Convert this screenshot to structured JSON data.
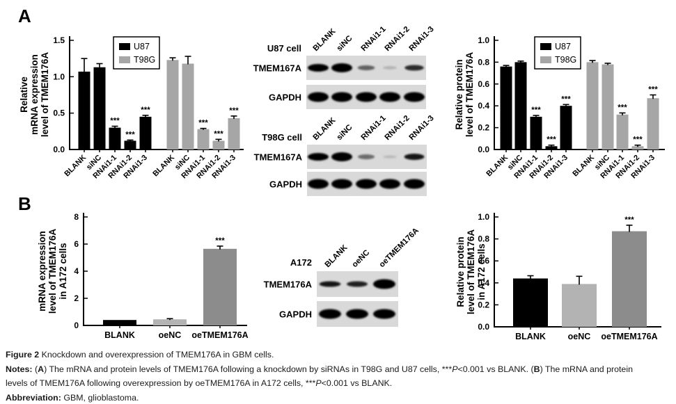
{
  "panels": {
    "a": "A",
    "b": "B"
  },
  "colors": {
    "u87": "#000000",
    "t98g": "#a6a6a6",
    "oenc": "#b3b3b3",
    "oetmem": "#8c8c8c",
    "blot_bg": "#d9d9d9"
  },
  "chart_data": [
    {
      "id": "a_mrna",
      "type": "bar",
      "ylabel_lines": [
        "Relative",
        "mRNA expression",
        "level of TMEM176A"
      ],
      "ylim": [
        0,
        1.5
      ],
      "yticks": [
        "0.0",
        "0.5",
        "1.0",
        "1.5"
      ],
      "categories": [
        "BLANK",
        "siNC",
        "RNAi1-1",
        "RNAi1-2",
        "RNAi1-3"
      ],
      "legend": [
        {
          "label": "U87",
          "color": "#000000"
        },
        {
          "label": "T98G",
          "color": "#a6a6a6"
        }
      ],
      "series": [
        {
          "name": "U87",
          "color": "#000000",
          "values": [
            1.07,
            1.13,
            0.3,
            0.12,
            0.45
          ],
          "errors": [
            0.18,
            0.05,
            0.02,
            0.01,
            0.02
          ],
          "sig": [
            "",
            "",
            "***",
            "***",
            "***"
          ]
        },
        {
          "name": "T98G",
          "color": "#a6a6a6",
          "values": [
            1.23,
            1.18,
            0.28,
            0.12,
            0.43
          ],
          "errors": [
            0.03,
            0.1,
            0.01,
            0.02,
            0.03
          ],
          "sig": [
            "",
            "",
            "***",
            "***",
            "***"
          ]
        }
      ]
    },
    {
      "id": "a_protein",
      "type": "bar",
      "ylabel_lines": [
        "Relative protein",
        "level of TMEM176A"
      ],
      "ylim": [
        0,
        1.0
      ],
      "yticks": [
        "0.0",
        "0.2",
        "0.4",
        "0.6",
        "0.8",
        "1.0"
      ],
      "categories": [
        "BLANK",
        "siNC",
        "RNAi1-1",
        "RNAi1-2",
        "RNAi1-3"
      ],
      "legend": [
        {
          "label": "U87",
          "color": "#000000"
        },
        {
          "label": "T98G",
          "color": "#a6a6a6"
        }
      ],
      "series": [
        {
          "name": "U87",
          "color": "#000000",
          "values": [
            0.76,
            0.8,
            0.3,
            0.03,
            0.4
          ],
          "errors": [
            0.01,
            0.01,
            0.012,
            0.01,
            0.012
          ],
          "sig": [
            "",
            "",
            "***",
            "***",
            "***"
          ]
        },
        {
          "name": "T98G",
          "color": "#a6a6a6",
          "values": [
            0.8,
            0.78,
            0.32,
            0.03,
            0.47
          ],
          "errors": [
            0.015,
            0.01,
            0.015,
            0.01,
            0.03
          ],
          "sig": [
            "",
            "",
            "***",
            "***",
            "***"
          ]
        }
      ]
    },
    {
      "id": "b_mrna",
      "type": "bar",
      "ylabel_lines": [
        "mRNA expression",
        "level of TMEM176A",
        "in A172 cells"
      ],
      "ylim": [
        0,
        8
      ],
      "yticks": [
        "0",
        "2",
        "4",
        "6",
        "8"
      ],
      "categories": [
        "BLANK",
        "oeNC",
        "oeTMEM176A"
      ],
      "series": [
        {
          "name": "A172",
          "colors": [
            "#000000",
            "#b3b3b3",
            "#8c8c8c"
          ],
          "values": [
            0.4,
            0.45,
            5.65
          ],
          "errors": [
            0,
            0.05,
            0.2
          ],
          "sig": [
            "",
            "",
            "***"
          ]
        }
      ]
    },
    {
      "id": "b_protein",
      "type": "bar",
      "ylabel_lines": [
        "Relative protein",
        "level of TMEM176A",
        "in A172 cells"
      ],
      "ylim": [
        0,
        1.0
      ],
      "yticks": [
        "0.0",
        "0.2",
        "0.4",
        "0.6",
        "0.8",
        "1.0"
      ],
      "categories": [
        "BLANK",
        "oeNC",
        "oeTMEM176A"
      ],
      "series": [
        {
          "name": "A172",
          "colors": [
            "#000000",
            "#b3b3b3",
            "#8c8c8c"
          ],
          "values": [
            0.44,
            0.39,
            0.87
          ],
          "errors": [
            0.025,
            0.07,
            0.055
          ],
          "sig": [
            "",
            "",
            "***"
          ]
        }
      ]
    }
  ],
  "blots": [
    {
      "id": "u87",
      "cell_label": "U87 cell",
      "lanes": [
        "BLANK",
        "siNC",
        "RNAi1-1",
        "RNAi1-2",
        "RNAi1-3"
      ],
      "rows": [
        {
          "label": "TMEM167A",
          "bands": [
            [
              1,
              5.5
            ],
            [
              1,
              6.5
            ],
            [
              0.55,
              3.5
            ],
            [
              0.18,
              2.2
            ],
            [
              0.8,
              4
            ]
          ]
        },
        {
          "label": "GAPDH",
          "bands": [
            [
              1,
              7
            ],
            [
              1,
              7
            ],
            [
              1,
              7
            ],
            [
              1,
              7
            ],
            [
              1,
              7
            ]
          ]
        }
      ]
    },
    {
      "id": "t98g",
      "cell_label": "T98G cell",
      "lanes": [
        "BLANK",
        "siNC",
        "RNAi1-1",
        "RNAi1-2",
        "RNAi1-3"
      ],
      "rows": [
        {
          "label": "TMEM167A",
          "bands": [
            [
              1,
              5.5
            ],
            [
              1,
              6.5
            ],
            [
              0.5,
              3.5
            ],
            [
              0.15,
              2
            ],
            [
              0.9,
              4.5
            ]
          ]
        },
        {
          "label": "GAPDH",
          "bands": [
            [
              1,
              7
            ],
            [
              1,
              7
            ],
            [
              1,
              7
            ],
            [
              1,
              7
            ],
            [
              1,
              7
            ]
          ]
        }
      ]
    },
    {
      "id": "a172",
      "cell_label": "A172",
      "lanes": [
        "BLANK",
        "oeNC",
        "oeTMEM176A"
      ],
      "rows": [
        {
          "label": "TMEM176A",
          "bands": [
            [
              0.9,
              4
            ],
            [
              0.85,
              4
            ],
            [
              1,
              7
            ]
          ]
        },
        {
          "label": "GAPDH",
          "bands": [
            [
              1,
              7
            ],
            [
              1,
              7
            ],
            [
              1,
              7
            ]
          ]
        }
      ]
    }
  ],
  "caption": {
    "lines": [
      [
        {
          "t": "Figure 2 ",
          "b": true
        },
        {
          "t": "Knockdown and overexpression of TMEM176A in GBM cells."
        }
      ],
      [
        {
          "t": "Notes: ",
          "b": true
        },
        {
          "t": "("
        },
        {
          "t": "A",
          "b": true
        },
        {
          "t": ") The mRNA and protein levels of TMEM176A following a knockdown by siRNAs in T98G and U87 cells, ***"
        },
        {
          "t": "P",
          "i": true
        },
        {
          "t": "<0.001 vs BLANK. ("
        },
        {
          "t": "B",
          "b": true
        },
        {
          "t": ") The mRNA and protein"
        }
      ],
      [
        {
          "t": "levels of TMEM176A following overexpression by oeTMEM176A in A172 cells, ***"
        },
        {
          "t": "P",
          "i": true
        },
        {
          "t": "<0.001 vs BLANK."
        }
      ],
      [
        {
          "t": "Abbreviation: ",
          "b": true
        },
        {
          "t": "GBM, glioblastoma."
        }
      ]
    ]
  }
}
